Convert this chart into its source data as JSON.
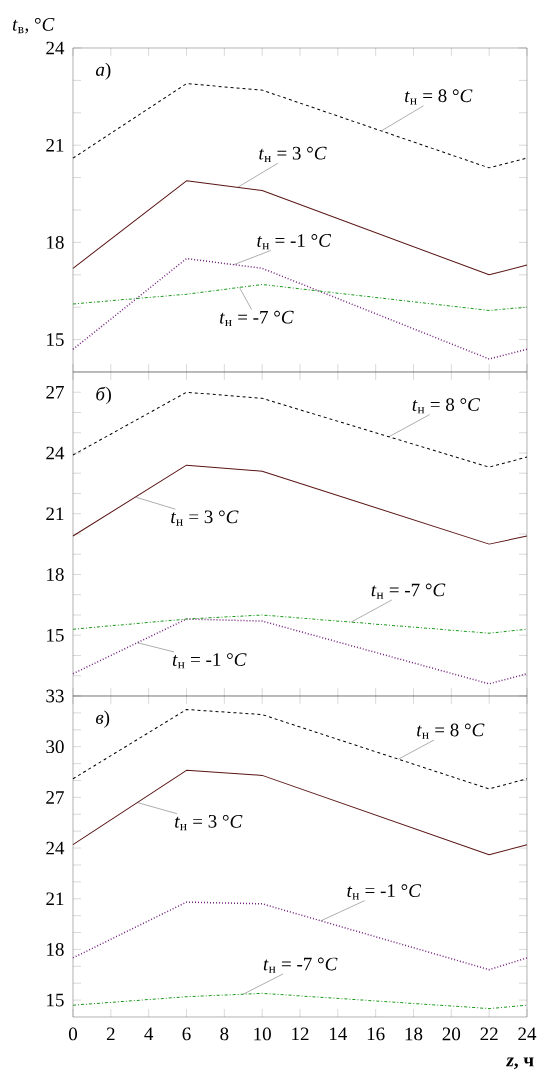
{
  "chart_data": [
    {
      "type": "line",
      "title": "*а*)",
      "ylabel": "*t*$_{в}$, °*C*",
      "tick_labels": "y",
      "x": [
        0,
        6,
        10,
        22,
        24
      ],
      "xlim": [
        0,
        24
      ],
      "xticks": [
        0,
        2,
        4,
        6,
        8,
        10,
        12,
        14,
        16,
        18,
        20,
        22,
        24
      ],
      "ylim": [
        14,
        24
      ],
      "yticks": [
        15,
        {
          "value": 16,
          "label": null
        },
        {
          "value": 17,
          "label": null
        },
        18,
        {
          "value": 19,
          "label": null
        },
        {
          "value": 20,
          "label": null
        },
        21,
        {
          "value": 22,
          "label": null
        },
        {
          "value": 23,
          "label": null
        },
        24
      ],
      "series": [
        {
          "name": "*t*$_{н}$ = 8 °*C*",
          "color": "#000000",
          "line_style": "dashed",
          "values": [
            20.6,
            22.9,
            22.7,
            20.3,
            20.6
          ]
        },
        {
          "name": "*t*$_{н}$ = 3 °*C*",
          "color": "#5a1414",
          "line_style": "solid",
          "values": [
            17.2,
            19.9,
            19.6,
            17.0,
            17.3
          ]
        },
        {
          "name": "*t*$_{н}$ = -1 °*C*",
          "color": "#74207e",
          "line_style": "dotted",
          "values": [
            14.7,
            17.5,
            17.2,
            14.4,
            14.7
          ]
        },
        {
          "name": "*t*$_{н}$ = -7 °*C*",
          "color": "#1a9a1a",
          "line_style": "dashdot",
          "values": [
            16.1,
            16.4,
            16.7,
            15.9,
            16.0
          ]
        }
      ]
    },
    {
      "type": "line",
      "title": "*б*)",
      "tick_labels": "y",
      "x": [
        0,
        6,
        10,
        22,
        24
      ],
      "xlim": [
        0,
        24
      ],
      "xticks": [
        0,
        2,
        4,
        6,
        8,
        10,
        12,
        14,
        16,
        18,
        20,
        22,
        24
      ],
      "ylim": [
        12,
        28
      ],
      "yticks": [
        {
          "value": 13,
          "label": null
        },
        {
          "value": 14,
          "label": null
        },
        15,
        {
          "value": 16,
          "label": null
        },
        {
          "value": 17,
          "label": null
        },
        18,
        {
          "value": 19,
          "label": null
        },
        {
          "value": 20,
          "label": null
        },
        21,
        {
          "value": 22,
          "label": null
        },
        {
          "value": 23,
          "label": null
        },
        24,
        {
          "value": 25,
          "label": null
        },
        {
          "value": 26,
          "label": null
        },
        27
      ],
      "series": [
        {
          "name": "*t*$_{н}$ = 8 °*C*",
          "color": "#000000",
          "line_style": "dashed",
          "values": [
            23.9,
            27.0,
            26.7,
            23.3,
            23.8
          ]
        },
        {
          "name": "*t*$_{н}$ = 3 °*C*",
          "color": "#5a1414",
          "line_style": "solid",
          "values": [
            19.9,
            23.4,
            23.1,
            19.5,
            19.9
          ]
        },
        {
          "name": "*t*$_{н}$ = -1 °*C*",
          "color": "#74207e",
          "line_style": "dotted",
          "values": [
            13.1,
            15.8,
            15.7,
            12.6,
            13.1
          ]
        },
        {
          "name": "*t*$_{н}$ = -7 °*C*",
          "color": "#1a9a1a",
          "line_style": "dashdot",
          "values": [
            15.3,
            15.8,
            16.0,
            15.1,
            15.3
          ]
        }
      ]
    },
    {
      "type": "line",
      "title": "*в*)",
      "xlabel": "*z*, ч",
      "x": [
        0,
        6,
        10,
        22,
        24
      ],
      "xlim": [
        0,
        24
      ],
      "xticks": [
        0,
        2,
        4,
        6,
        8,
        10,
        12,
        14,
        16,
        18,
        20,
        22,
        24
      ],
      "ylim": [
        14,
        33
      ],
      "yticks": [
        15,
        {
          "value": 16,
          "label": null
        },
        {
          "value": 17,
          "label": null
        },
        18,
        {
          "value": 19,
          "label": null
        },
        {
          "value": 20,
          "label": null
        },
        21,
        {
          "value": 22,
          "label": null
        },
        {
          "value": 23,
          "label": null
        },
        24,
        {
          "value": 25,
          "label": null
        },
        {
          "value": 26,
          "label": null
        },
        27,
        {
          "value": 28,
          "label": null
        },
        {
          "value": 29,
          "label": null
        },
        30,
        {
          "value": 31,
          "label": null
        },
        {
          "value": 32,
          "label": null
        },
        33
      ],
      "series": [
        {
          "name": "*t*$_{н}$ = 8 °*C*",
          "color": "#000000",
          "line_style": "dashed",
          "values": [
            28.1,
            32.2,
            31.9,
            27.5,
            28.1
          ]
        },
        {
          "name": "*t*$_{н}$ = 3 °*C*",
          "color": "#5a1414",
          "line_style": "solid",
          "values": [
            24.2,
            28.6,
            28.3,
            23.6,
            24.2
          ]
        },
        {
          "name": "*t*$_{н}$ = -1 °*C*",
          "color": "#74207e",
          "line_style": "dotted",
          "values": [
            17.5,
            20.8,
            20.7,
            16.8,
            17.5
          ]
        },
        {
          "name": "*t*$_{н}$ = -7 °*C*",
          "color": "#1a9a1a",
          "line_style": "dashdot",
          "values": [
            14.7,
            15.2,
            15.4,
            14.5,
            14.7
          ]
        }
      ]
    }
  ]
}
